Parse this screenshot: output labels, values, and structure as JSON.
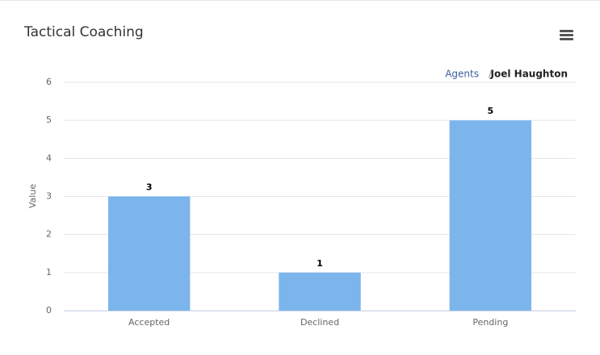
{
  "chart_data": {
    "type": "bar",
    "title": "Tactical Coaching",
    "breadcrumb": {
      "items": [
        "Agents",
        "Joel Haughton"
      ],
      "separator": "/"
    },
    "ylabel": "Value",
    "categories": [
      "Accepted",
      "Declined",
      "Pending"
    ],
    "values": [
      3,
      1,
      5
    ],
    "color": "#7cb5ec",
    "ylim": [
      0,
      6
    ],
    "yticks": [
      0,
      1,
      2,
      3,
      4,
      5,
      6
    ],
    "grid": true
  }
}
